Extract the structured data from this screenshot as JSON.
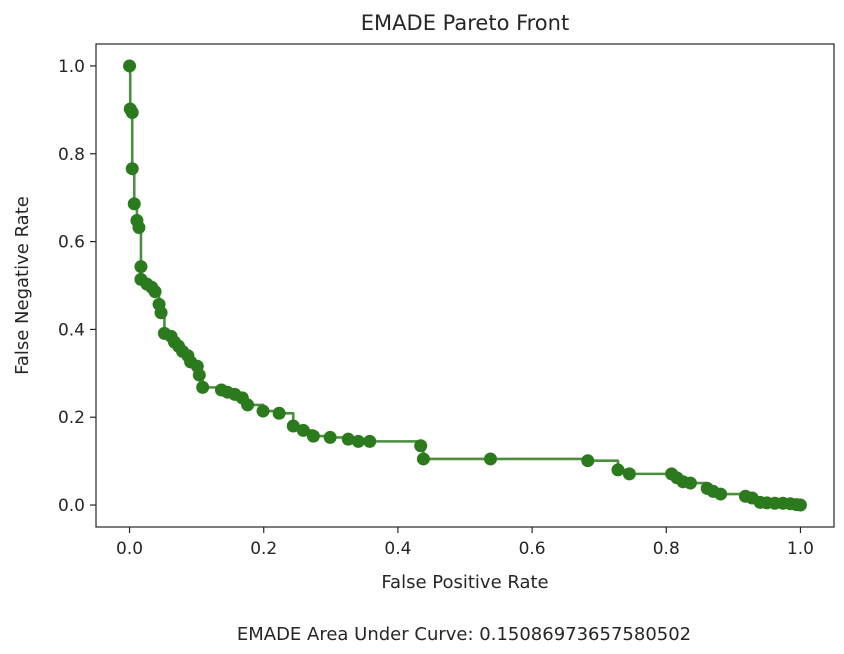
{
  "chart_data": {
    "type": "line",
    "title": "EMADE Pareto Front",
    "xlabel": "False Positive Rate",
    "ylabel": "False Negative Rate",
    "footnote": "EMADE Area Under Curve: 0.15086973657580502",
    "xlim": [
      -0.05,
      1.05
    ],
    "ylim": [
      -0.05,
      1.05
    ],
    "xticks": [
      0.0,
      0.2,
      0.4,
      0.6,
      0.8,
      1.0
    ],
    "yticks": [
      0.0,
      0.2,
      0.4,
      0.6,
      0.8,
      1.0
    ],
    "xtick_labels": [
      "0.0",
      "0.2",
      "0.4",
      "0.6",
      "0.8",
      "1.0"
    ],
    "ytick_labels": [
      "0.0",
      "0.2",
      "0.4",
      "0.6",
      "0.8",
      "1.0"
    ],
    "grid": false,
    "step": "post",
    "color": "#2b7a1e",
    "series": [
      {
        "points": [
          [
            0.0,
            1.0
          ],
          [
            0.001,
            0.902
          ],
          [
            0.004,
            0.894
          ],
          [
            0.004,
            0.766
          ],
          [
            0.007,
            0.686
          ],
          [
            0.011,
            0.648
          ],
          [
            0.014,
            0.632
          ],
          [
            0.017,
            0.543
          ],
          [
            0.017,
            0.514
          ],
          [
            0.026,
            0.503
          ],
          [
            0.033,
            0.496
          ],
          [
            0.038,
            0.486
          ],
          [
            0.044,
            0.457
          ],
          [
            0.047,
            0.438
          ],
          [
            0.052,
            0.391
          ],
          [
            0.062,
            0.384
          ],
          [
            0.067,
            0.371
          ],
          [
            0.073,
            0.362
          ],
          [
            0.079,
            0.35
          ],
          [
            0.087,
            0.34
          ],
          [
            0.091,
            0.326
          ],
          [
            0.101,
            0.316
          ],
          [
            0.104,
            0.296
          ],
          [
            0.109,
            0.268
          ],
          [
            0.137,
            0.262
          ],
          [
            0.146,
            0.257
          ],
          [
            0.157,
            0.252
          ],
          [
            0.168,
            0.244
          ],
          [
            0.176,
            0.228
          ],
          [
            0.199,
            0.214
          ],
          [
            0.223,
            0.209
          ],
          [
            0.244,
            0.18
          ],
          [
            0.259,
            0.17
          ],
          [
            0.274,
            0.157
          ],
          [
            0.299,
            0.154
          ],
          [
            0.326,
            0.15
          ],
          [
            0.341,
            0.145
          ],
          [
            0.358,
            0.145
          ],
          [
            0.434,
            0.135
          ],
          [
            0.438,
            0.105
          ],
          [
            0.538,
            0.105
          ],
          [
            0.683,
            0.101
          ],
          [
            0.728,
            0.08
          ],
          [
            0.745,
            0.071
          ],
          [
            0.808,
            0.071
          ],
          [
            0.816,
            0.062
          ],
          [
            0.825,
            0.053
          ],
          [
            0.836,
            0.05
          ],
          [
            0.861,
            0.038
          ],
          [
            0.87,
            0.031
          ],
          [
            0.881,
            0.025
          ],
          [
            0.918,
            0.02
          ],
          [
            0.928,
            0.016
          ],
          [
            0.94,
            0.006
          ],
          [
            0.95,
            0.005
          ],
          [
            0.962,
            0.004
          ],
          [
            0.974,
            0.004
          ],
          [
            0.985,
            0.003
          ],
          [
            0.994,
            0.001
          ],
          [
            1.0,
            0.0
          ]
        ]
      }
    ]
  }
}
